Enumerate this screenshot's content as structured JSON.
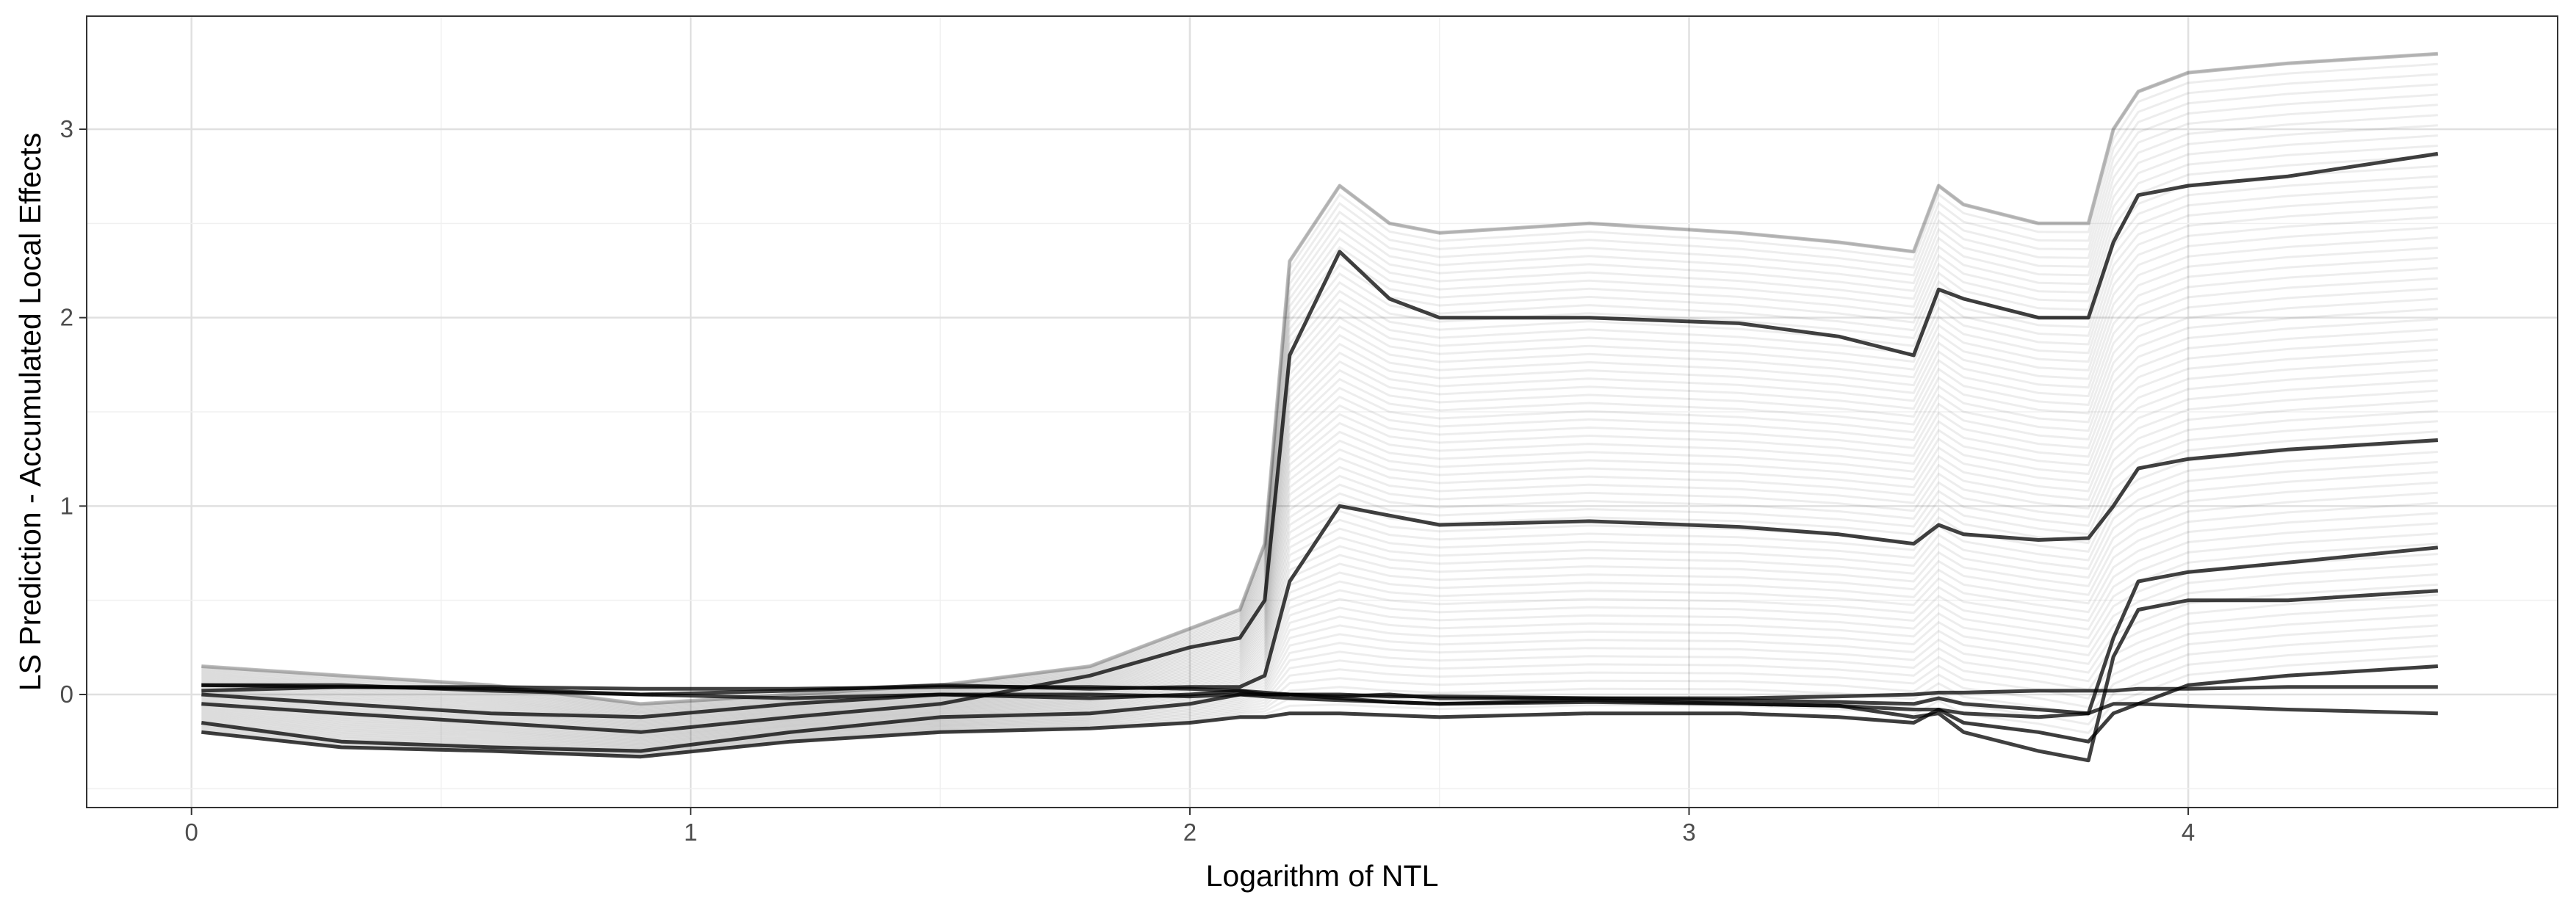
{
  "chart_data": {
    "type": "line",
    "title": "",
    "xlabel": "Logarithm of NTL",
    "ylabel": "LS Prediction - Accumulated Local Effects",
    "xlim": [
      -0.21,
      4.74
    ],
    "ylim": [
      -0.6,
      3.6
    ],
    "x_ticks": [
      0,
      1,
      2,
      3,
      4
    ],
    "y_ticks": [
      0,
      1,
      2,
      3
    ],
    "x_tick_labels": [
      "0",
      "1",
      "2",
      "3",
      "4"
    ],
    "y_tick_labels": [
      "0",
      "1",
      "2",
      "3"
    ],
    "grid": true,
    "legend": "none",
    "line_color": "#000000",
    "x": [
      0.02,
      0.3,
      0.6,
      0.9,
      1.2,
      1.5,
      1.8,
      2.0,
      2.1,
      2.15,
      2.2,
      2.3,
      2.4,
      2.5,
      2.8,
      3.1,
      3.3,
      3.45,
      3.5,
      3.55,
      3.7,
      3.8,
      3.85,
      3.9,
      4.0,
      4.2,
      4.5
    ],
    "series": [
      {
        "values": [
          0.05,
          0.05,
          0.02,
          0.0,
          0.02,
          0.05,
          0.03,
          0.04,
          0.04,
          0.1,
          0.6,
          1.0,
          0.95,
          0.9,
          0.92,
          0.89,
          0.85,
          0.8,
          0.9,
          0.85,
          0.82,
          0.83,
          1.0,
          1.2,
          1.25,
          1.3,
          1.35
        ]
      },
      {
        "values": [
          -0.05,
          -0.1,
          -0.15,
          -0.2,
          -0.12,
          -0.05,
          0.1,
          0.25,
          0.3,
          0.5,
          1.8,
          2.35,
          2.1,
          2.0,
          2.0,
          1.97,
          1.9,
          1.8,
          2.15,
          2.1,
          2.0,
          2.0,
          2.4,
          2.65,
          2.7,
          2.75,
          2.87
        ]
      },
      {
        "values": [
          0.15,
          0.1,
          0.05,
          -0.05,
          0.0,
          0.05,
          0.15,
          0.35,
          0.45,
          0.8,
          2.3,
          2.7,
          2.5,
          2.45,
          2.5,
          2.45,
          2.4,
          2.35,
          2.7,
          2.6,
          2.5,
          2.5,
          3.0,
          3.2,
          3.3,
          3.35,
          3.4
        ]
      },
      {
        "values": [
          -0.15,
          -0.25,
          -0.28,
          -0.3,
          -0.2,
          -0.12,
          -0.1,
          -0.05,
          0.0,
          0.0,
          0.0,
          -0.02,
          -0.04,
          -0.05,
          -0.03,
          -0.05,
          -0.06,
          -0.12,
          -0.1,
          -0.2,
          -0.3,
          -0.35,
          0.2,
          0.45,
          0.5,
          0.5,
          0.55
        ]
      },
      {
        "values": [
          0.0,
          -0.05,
          -0.1,
          -0.12,
          -0.05,
          0.0,
          -0.02,
          0.0,
          0.02,
          0.0,
          0.0,
          -0.01,
          0.0,
          -0.02,
          -0.02,
          -0.03,
          -0.04,
          -0.05,
          -0.02,
          -0.05,
          -0.08,
          -0.1,
          0.3,
          0.6,
          0.65,
          0.7,
          0.78
        ]
      },
      {
        "values": [
          0.05,
          0.04,
          0.03,
          0.0,
          -0.02,
          0.0,
          0.0,
          -0.01,
          0.0,
          -0.01,
          -0.02,
          -0.03,
          -0.04,
          -0.05,
          -0.04,
          -0.05,
          -0.06,
          -0.08,
          -0.08,
          -0.1,
          -0.12,
          -0.1,
          -0.05,
          -0.05,
          -0.06,
          -0.08,
          -0.1
        ]
      },
      {
        "values": [
          -0.2,
          -0.28,
          -0.3,
          -0.33,
          -0.25,
          -0.2,
          -0.18,
          -0.15,
          -0.12,
          -0.12,
          -0.1,
          -0.1,
          -0.11,
          -0.12,
          -0.1,
          -0.1,
          -0.12,
          -0.15,
          -0.08,
          -0.15,
          -0.2,
          -0.25,
          -0.1,
          -0.05,
          0.05,
          0.1,
          0.15
        ]
      },
      {
        "values": [
          0.02,
          0.04,
          0.04,
          0.03,
          0.03,
          0.04,
          0.04,
          0.03,
          0.02,
          0.01,
          0.0,
          0.0,
          -0.01,
          -0.01,
          -0.02,
          -0.02,
          -0.01,
          0.0,
          0.01,
          0.01,
          0.02,
          0.02,
          0.02,
          0.03,
          0.03,
          0.04,
          0.04
        ]
      }
    ]
  }
}
